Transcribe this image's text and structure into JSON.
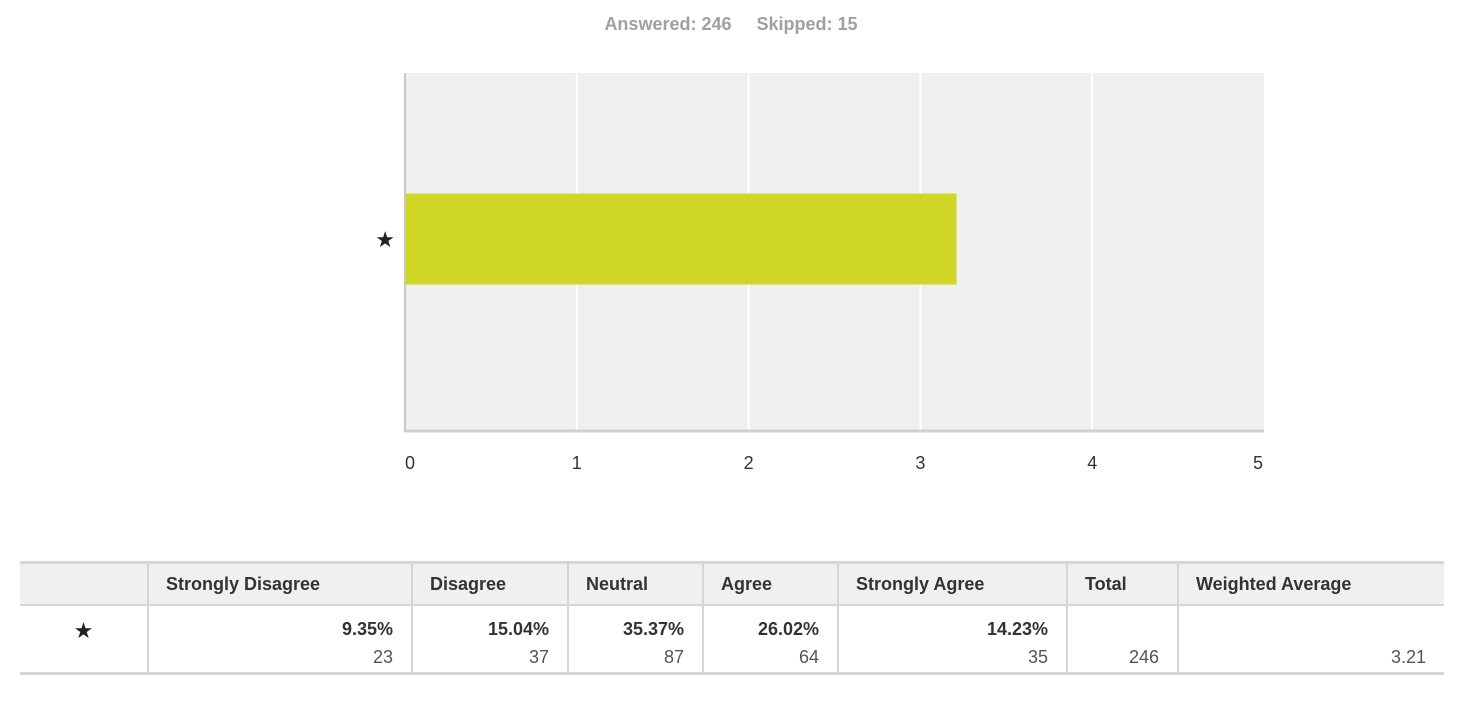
{
  "summary": {
    "answered": "Answered: 246",
    "skipped": "Skipped: 15"
  },
  "chart_data": {
    "type": "bar",
    "orientation": "horizontal",
    "categories": [
      "★"
    ],
    "values": [
      3.21
    ],
    "xlim": [
      0,
      5
    ],
    "xticks": [
      "0",
      "1",
      "2",
      "3",
      "4",
      "5"
    ],
    "grid": true,
    "bar_color": "#cfd626",
    "plot_background": "#efefef",
    "title": "",
    "xlabel": "",
    "ylabel": ""
  },
  "table": {
    "headers": [
      "",
      "Strongly Disagree",
      "Disagree",
      "Neutral",
      "Agree",
      "Strongly Agree",
      "Total",
      "Weighted Average"
    ],
    "rows": [
      {
        "label": "★",
        "cells": [
          {
            "pct": "9.35%",
            "count": "23"
          },
          {
            "pct": "15.04%",
            "count": "37"
          },
          {
            "pct": "35.37%",
            "count": "87"
          },
          {
            "pct": "26.02%",
            "count": "64"
          },
          {
            "pct": "14.23%",
            "count": "35"
          }
        ],
        "total": "246",
        "weighted_average": "3.21"
      }
    ]
  }
}
